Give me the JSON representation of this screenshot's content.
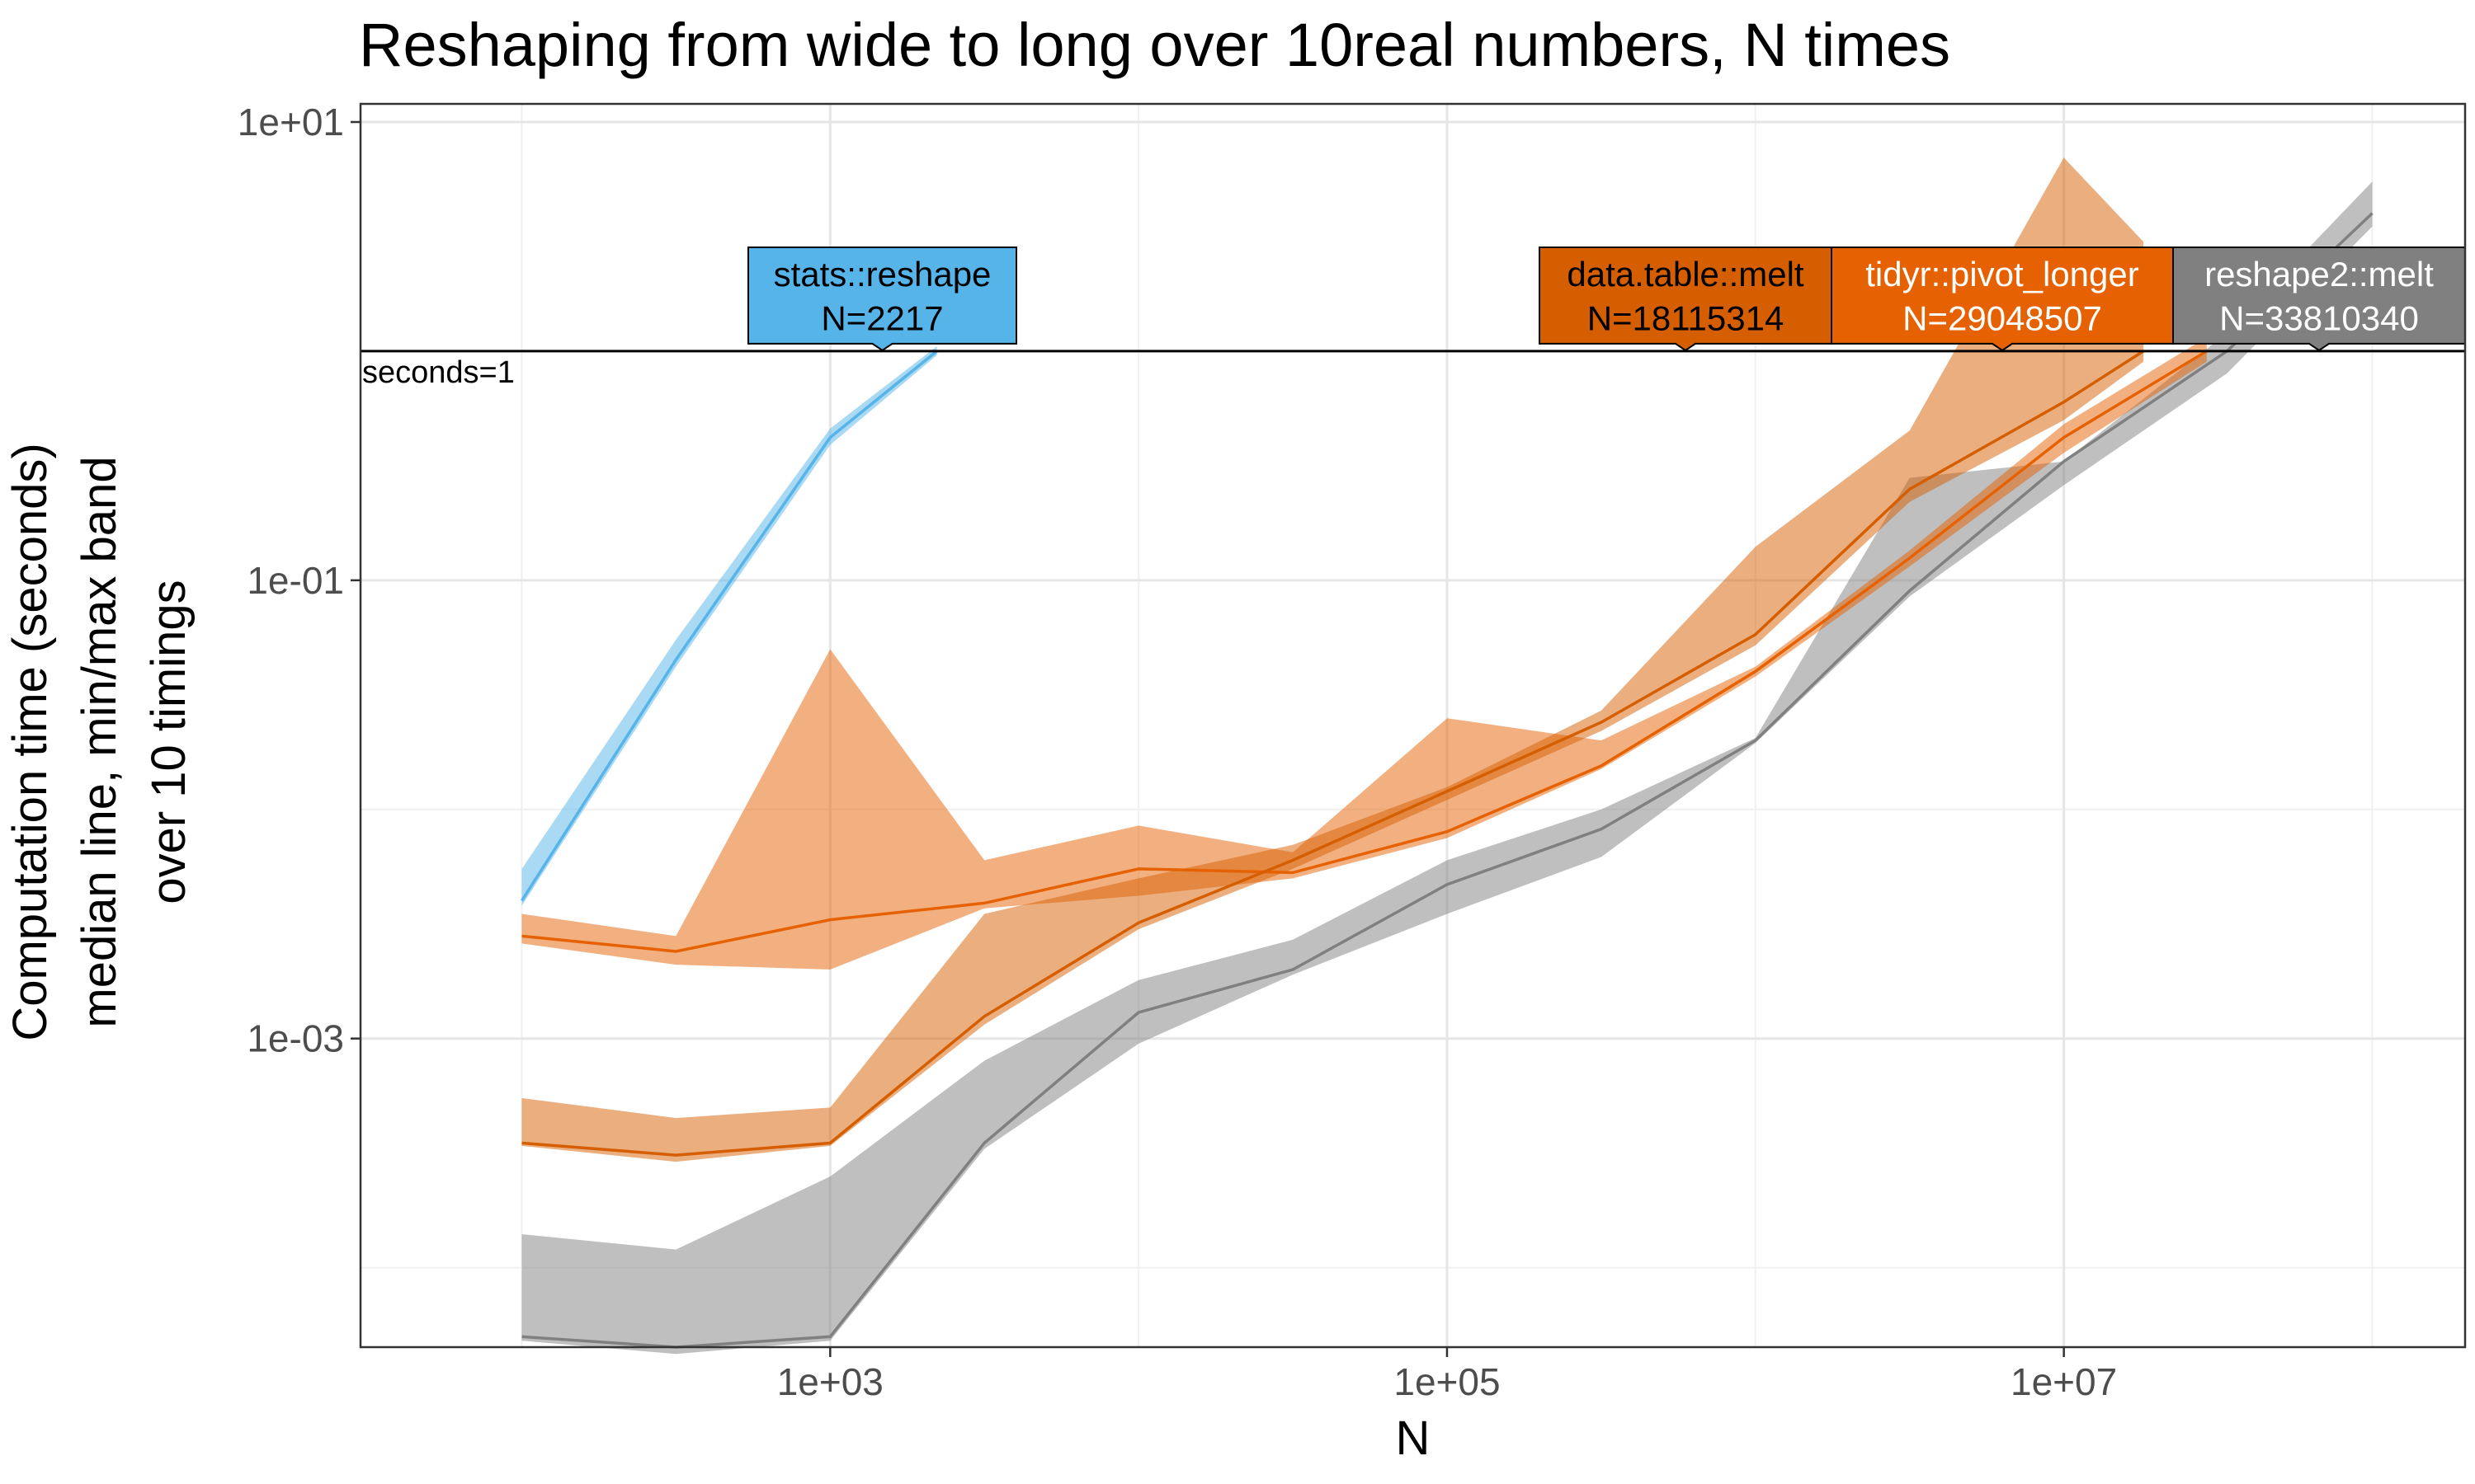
{
  "chart_data": {
    "type": "line",
    "title": "Reshaping from wide to long over 10real numbers, N times",
    "xlabel": "N",
    "ylabel": [
      "Computation time (seconds)",
      "median line, min/max band",
      "over 10 timings"
    ],
    "x_scale": "log10",
    "y_scale": "log10",
    "xlim": [
      30,
      200000000
    ],
    "ylim": [
      4.5e-05,
      12
    ],
    "x_ticks": [
      {
        "value": 1000,
        "label": "1e+03"
      },
      {
        "value": 100000,
        "label": "1e+05"
      },
      {
        "value": 10000000,
        "label": "1e+07"
      }
    ],
    "y_ticks": [
      {
        "value": 10,
        "label": "1e+01"
      },
      {
        "value": 0.1,
        "label": "1e-01"
      },
      {
        "value": 0.001,
        "label": "1e-03"
      }
    ],
    "grid": true,
    "reference_line": {
      "y": 1,
      "label": "seconds=1"
    },
    "series": [
      {
        "name": "stats::reshape",
        "color": "#56B4E9",
        "N_label": "N=2217",
        "x": [
          100,
          316,
          1000,
          2217
        ],
        "median": [
          0.004,
          0.045,
          0.42,
          1.0
        ],
        "min": [
          0.0038,
          0.042,
          0.39,
          0.96
        ],
        "max": [
          0.0055,
          0.055,
          0.46,
          1.05
        ]
      },
      {
        "name": "data.table::melt",
        "color": "#D55E00",
        "N_label": "N=18115314",
        "x": [
          100,
          316,
          1000,
          3162,
          10000,
          31623,
          100000,
          316228,
          1000000,
          3162278,
          10000000,
          18115314
        ],
        "median": [
          0.00035,
          0.00031,
          0.00035,
          0.00125,
          0.0032,
          0.006,
          0.012,
          0.024,
          0.058,
          0.25,
          0.6,
          1.0
        ],
        "min": [
          0.00034,
          0.00029,
          0.00034,
          0.00115,
          0.003,
          0.0055,
          0.011,
          0.022,
          0.052,
          0.22,
          0.5,
          0.9
        ],
        "max": [
          0.00055,
          0.00045,
          0.0005,
          0.0035,
          0.005,
          0.007,
          0.0125,
          0.027,
          0.14,
          0.45,
          7.0,
          3.0
        ]
      },
      {
        "name": "tidyr::pivot_longer",
        "color": "#E66101",
        "N_label": "N=29048507",
        "x": [
          100,
          316,
          1000,
          3162,
          10000,
          31623,
          100000,
          316228,
          1000000,
          3162278,
          10000000,
          29048507
        ],
        "median": [
          0.0028,
          0.0024,
          0.0033,
          0.0039,
          0.0055,
          0.0053,
          0.008,
          0.0155,
          0.04,
          0.125,
          0.42,
          1.0
        ],
        "min": [
          0.0026,
          0.0021,
          0.002,
          0.0037,
          0.0042,
          0.005,
          0.0075,
          0.015,
          0.038,
          0.115,
          0.36,
          0.9
        ],
        "max": [
          0.0035,
          0.0028,
          0.05,
          0.006,
          0.0085,
          0.0065,
          0.025,
          0.02,
          0.042,
          0.135,
          0.48,
          1.15
        ]
      },
      {
        "name": "reshape2::melt",
        "color": "#808080",
        "N_label": "N=33810340",
        "x": [
          100,
          316,
          1000,
          3162,
          10000,
          31623,
          100000,
          316228,
          1000000,
          3162278,
          10000000,
          33810340,
          100000000
        ],
        "median": [
          5e-05,
          4.5e-05,
          5e-05,
          0.00035,
          0.0013,
          0.002,
          0.0047,
          0.0082,
          0.02,
          0.09,
          0.33,
          1.0,
          4.0
        ],
        "min": [
          4.8e-05,
          4.2e-05,
          4.8e-05,
          0.00033,
          0.00095,
          0.0019,
          0.0035,
          0.0062,
          0.0195,
          0.085,
          0.26,
          0.8,
          3.5
        ],
        "max": [
          0.00014,
          0.00012,
          0.00025,
          0.0008,
          0.0018,
          0.0027,
          0.006,
          0.01,
          0.0205,
          0.28,
          0.33,
          1.2,
          5.5
        ]
      }
    ],
    "direct_labels": [
      {
        "series": "stats::reshape",
        "text": "stats::reshape",
        "n_text": "N=2217",
        "color": "#56B4E9",
        "text_color": "#000000"
      },
      {
        "series": "data.table::melt",
        "text": "data.table::melt",
        "n_text": "N=18115314",
        "color": "#D55E00",
        "text_color": "#000000"
      },
      {
        "series": "tidyr::pivot_longer",
        "text": "tidyr::pivot_longer",
        "n_text": "N=29048507",
        "color": "#E66101",
        "text_color": "#ffffff"
      },
      {
        "series": "reshape2::melt",
        "text": "reshape2::melt",
        "n_text": "N=33810340",
        "color": "#808080",
        "text_color": "#ffffff"
      }
    ]
  }
}
